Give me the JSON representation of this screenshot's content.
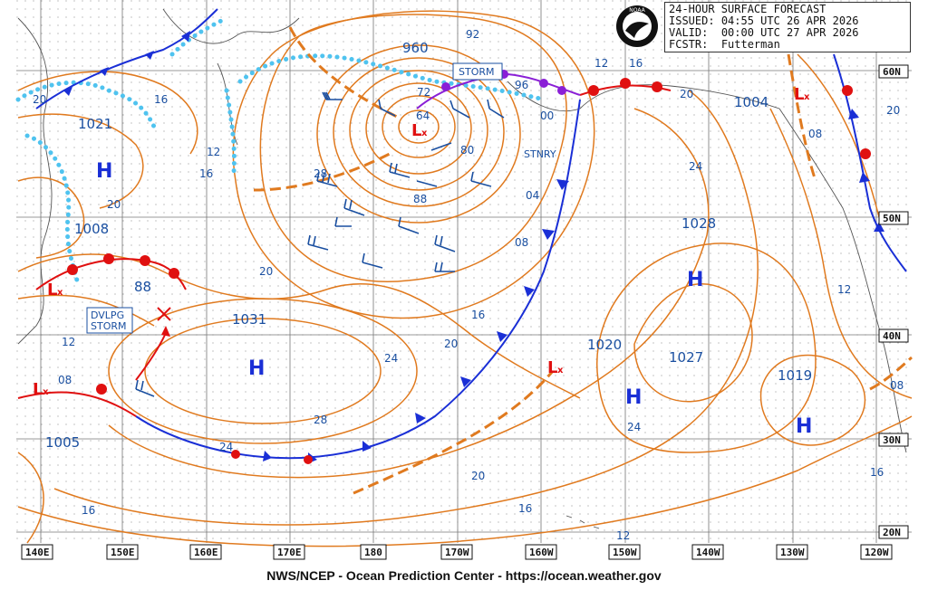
{
  "header": {
    "title": "24-HOUR SURFACE FORECAST",
    "issued_label": "ISSUED:",
    "issued": "04:55 UTC 26 APR 2026",
    "valid_label": "VALID:",
    "valid": "00:00 UTC 27 APR 2026",
    "forecaster_label": "FCSTR:",
    "forecaster": "Futterman"
  },
  "credit": "NWS/NCEP - Ocean Prediction Center - https://ocean.weather.gov",
  "logo": {
    "name": "noaa-logo",
    "text": "NOAA"
  },
  "longitude_labels": [
    "140E",
    "150E",
    "160E",
    "170E",
    "180",
    "170W",
    "160W",
    "150W",
    "140W",
    "130W",
    "120W"
  ],
  "latitude_labels": [
    "60N",
    "50N",
    "40N",
    "30N",
    "20N"
  ],
  "pressure_centers": [
    {
      "type": "H",
      "value": "1021"
    },
    {
      "type": "H",
      "value": "1031"
    },
    {
      "type": "H",
      "value": "1028"
    },
    {
      "type": "H",
      "value": "1027"
    },
    {
      "type": "H",
      "value": "1020"
    },
    {
      "type": "H",
      "value": "1019"
    },
    {
      "type": "L",
      "value": "960"
    },
    {
      "type": "L",
      "value": "1004"
    },
    {
      "type": "L",
      "value": "1008"
    },
    {
      "type": "L",
      "value": "1005"
    }
  ],
  "isobar_labels": [
    "92",
    "96",
    "00",
    "64",
    "72",
    "80",
    "88",
    "04",
    "08",
    "12",
    "16",
    "20",
    "24",
    "28",
    "16",
    "12",
    "08",
    "04",
    "20",
    "24",
    "12",
    "08",
    "16",
    "20",
    "24",
    "16",
    "12",
    "20",
    "16",
    "12",
    "08",
    "04"
  ],
  "boxed_labels": [
    "STORM",
    "STNRY",
    "DVLPG\nSTORM"
  ],
  "misc_labels": {
    "dvlpg_pressure": "88"
  },
  "colors": {
    "isobar": "#e07a1f",
    "cold_front": "#1a2fd6",
    "warm_front": "#e01010",
    "occluded": "#8a1fd6",
    "ice": "#4fc3ef",
    "label": "#1a4fa0",
    "high": "#1a2fd6",
    "low": "#e01010"
  }
}
